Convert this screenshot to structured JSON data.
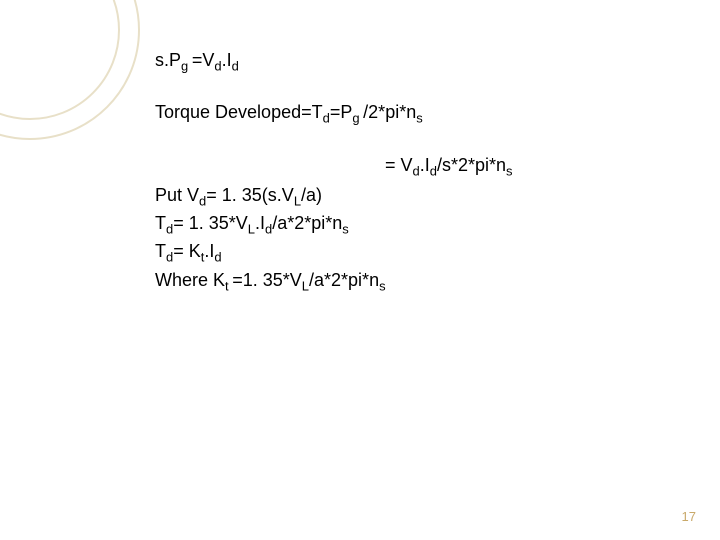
{
  "decor": {
    "ring_color": "#e8e0c8"
  },
  "content": {
    "line1_pre": "s.P",
    "line1_sub1": "g ",
    "line1_mid": "=V",
    "line1_sub2": "d",
    "line1_mid2": ".I",
    "line1_sub3": "d",
    "line2_a": "Torque Developed=T",
    "line2_sub1": "d",
    "line2_b": "=P",
    "line2_sub2": "g ",
    "line2_c": "/2*pi*n",
    "line2_sub3": "s",
    "line3_a": "= V",
    "line3_sub1": "d",
    "line3_b": ".I",
    "line3_sub2": "d",
    "line3_c": "/s*2*pi*n",
    "line3_sub3": "s",
    "line4_a": "Put V",
    "line4_sub1": "d",
    "line4_b": "= 1. 35(s.V",
    "line4_sub2": "L",
    "line4_c": "/a)",
    "line5_a": "T",
    "line5_sub1": "d",
    "line5_b": "= 1. 35*V",
    "line5_sub2": "L",
    "line5_c": ".I",
    "line5_sub3": "d",
    "line5_d": "/a*2*pi*n",
    "line5_sub4": "s",
    "line6_a": "T",
    "line6_sub1": "d",
    "line6_b": "= K",
    "line6_sub2": "t",
    "line6_c": ".I",
    "line6_sub3": "d",
    "line7_a": "Where K",
    "line7_sub1": "t ",
    "line7_b": "=1. 35*V",
    "line7_sub2": "L",
    "line7_c": "/a*2*pi*n",
    "line7_sub3": "s"
  },
  "page": {
    "number": "17",
    "number_color": "#c9a96a"
  }
}
